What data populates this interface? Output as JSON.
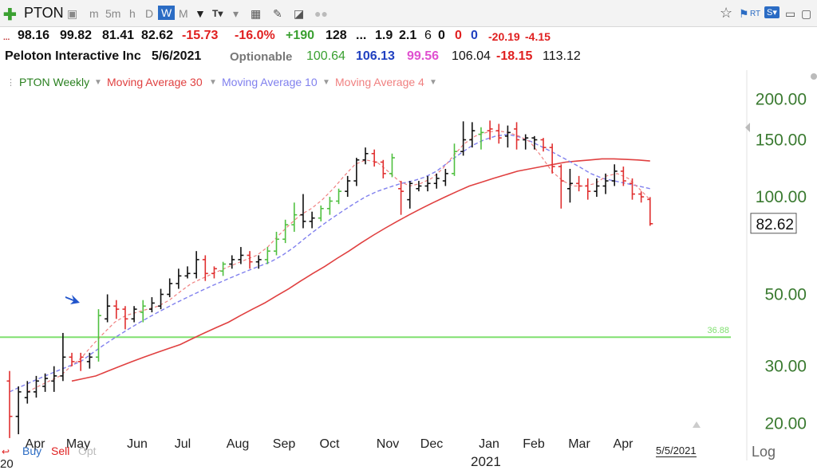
{
  "toolbar": {
    "symbol": "PTON",
    "periods": [
      "m",
      "5m",
      "h",
      "D",
      "W",
      "M"
    ],
    "active_period": "W",
    "icons": [
      "plus-icon",
      "printer-icon",
      "text-tool-icon",
      "grid-icon",
      "pencil-icon",
      "tag-icon",
      "dots-icon",
      "star-icon",
      "flag-icon",
      "rt-icon",
      "s-icon",
      "save-icon",
      "close-icon"
    ]
  },
  "quote_line1": {
    "open": "98.16",
    "high": "99.82",
    "low": "81.41",
    "close": "82.62",
    "change": "-15.73",
    "change_pct": "-16.0%",
    "rank": "+190",
    "val1": "128",
    "dots": "...",
    "val2": "1.9",
    "val3": "2.1",
    "c1": "6",
    "c2": "0",
    "c3": "0",
    "c4": "0",
    "val4": "-20.19",
    "val5": "-4.15"
  },
  "quote_line2": {
    "name": "Peloton Interactive Inc",
    "date": "5/6/2021",
    "optionable": "Optionable",
    "v1": "100.64",
    "v2": "106.13",
    "v3": "99.56",
    "v4": "106.04",
    "v5": "-18.15",
    "v6": "113.12"
  },
  "legend": {
    "series1": "PTON Weekly",
    "series2": "Moving Average 30",
    "series3": "Moving Average 10",
    "series4": "Moving Average 4"
  },
  "footer": {
    "buy": "Buy",
    "sell": "Sell",
    "opt": "Opt",
    "log": "Log",
    "date_box": "5/5/2021",
    "year_label": "2021",
    "year_prefix": "20"
  },
  "colors": {
    "up": "#50c040",
    "down": "#e03030",
    "neutral": "#111111",
    "ma30": "#e04040",
    "ma10": "#8080ee",
    "ma4": "#f08080",
    "hline": "#80e070",
    "axis_text": "#3a7a30"
  },
  "chart_data": {
    "type": "bar",
    "title": "",
    "scale": "log",
    "ylim": [
      17,
      230
    ],
    "y_ticks": [
      "200.00",
      "150.00",
      "100.00",
      "50.00",
      "30.00",
      "20.00"
    ],
    "y_tick_values": [
      200,
      150,
      100,
      50,
      30,
      20
    ],
    "x_ticks": [
      "Apr",
      "May",
      "Jun",
      "Jul",
      "Aug",
      "Sep",
      "Oct",
      "Nov",
      "Dec",
      "Jan",
      "Feb",
      "Mar",
      "Apr"
    ],
    "last_price_label": "82.62",
    "horizontal_line_label": "36.88",
    "horizontal_line_value": 36.88,
    "bars": [
      {
        "o": 27,
        "h": 29,
        "l": 18,
        "c": 21,
        "d": "down"
      },
      {
        "o": 21,
        "h": 26,
        "l": 18.5,
        "c": 25,
        "d": "neutral"
      },
      {
        "o": 24,
        "h": 27,
        "l": 23,
        "c": 25,
        "d": "neutral"
      },
      {
        "o": 25,
        "h": 28,
        "l": 24,
        "c": 27,
        "d": "neutral"
      },
      {
        "o": 26,
        "h": 28.5,
        "l": 25,
        "c": 27.5,
        "d": "neutral"
      },
      {
        "o": 27,
        "h": 30,
        "l": 25,
        "c": 28,
        "d": "neutral"
      },
      {
        "o": 28,
        "h": 38,
        "l": 27,
        "c": 32,
        "d": "neutral"
      },
      {
        "o": 32,
        "h": 33,
        "l": 30,
        "c": 31,
        "d": "down"
      },
      {
        "o": 31,
        "h": 33,
        "l": 29,
        "c": 32,
        "d": "down"
      },
      {
        "o": 31,
        "h": 33,
        "l": 29.5,
        "c": 32,
        "d": "neutral"
      },
      {
        "o": 32,
        "h": 45,
        "l": 31,
        "c": 43,
        "d": "up"
      },
      {
        "o": 42,
        "h": 50,
        "l": 41,
        "c": 46,
        "d": "neutral"
      },
      {
        "o": 46,
        "h": 48,
        "l": 42,
        "c": 45,
        "d": "down"
      },
      {
        "o": 45,
        "h": 46,
        "l": 39,
        "c": 42,
        "d": "down"
      },
      {
        "o": 42,
        "h": 46,
        "l": 41,
        "c": 45,
        "d": "neutral"
      },
      {
        "o": 44,
        "h": 48,
        "l": 41,
        "c": 46,
        "d": "up"
      },
      {
        "o": 45,
        "h": 49,
        "l": 44,
        "c": 47,
        "d": "neutral"
      },
      {
        "o": 46,
        "h": 52,
        "l": 45,
        "c": 50,
        "d": "neutral"
      },
      {
        "o": 50,
        "h": 56,
        "l": 49,
        "c": 54,
        "d": "neutral"
      },
      {
        "o": 54,
        "h": 60,
        "l": 52,
        "c": 57,
        "d": "neutral"
      },
      {
        "o": 57,
        "h": 61,
        "l": 56,
        "c": 58,
        "d": "neutral"
      },
      {
        "o": 58,
        "h": 68,
        "l": 56,
        "c": 64,
        "d": "neutral"
      },
      {
        "o": 64,
        "h": 66,
        "l": 55,
        "c": 58,
        "d": "down"
      },
      {
        "o": 58,
        "h": 61,
        "l": 56,
        "c": 60,
        "d": "down"
      },
      {
        "o": 59,
        "h": 63,
        "l": 57,
        "c": 62,
        "d": "up"
      },
      {
        "o": 62,
        "h": 66,
        "l": 60,
        "c": 64,
        "d": "neutral"
      },
      {
        "o": 64,
        "h": 70,
        "l": 62,
        "c": 66,
        "d": "neutral"
      },
      {
        "o": 66,
        "h": 68,
        "l": 60,
        "c": 63,
        "d": "down"
      },
      {
        "o": 63,
        "h": 66,
        "l": 60,
        "c": 64,
        "d": "neutral"
      },
      {
        "o": 64,
        "h": 70,
        "l": 62,
        "c": 68,
        "d": "up"
      },
      {
        "o": 68,
        "h": 78,
        "l": 66,
        "c": 74,
        "d": "up"
      },
      {
        "o": 74,
        "h": 85,
        "l": 72,
        "c": 82,
        "d": "up"
      },
      {
        "o": 82,
        "h": 96,
        "l": 78,
        "c": 88,
        "d": "up"
      },
      {
        "o": 88,
        "h": 102,
        "l": 80,
        "c": 84,
        "d": "neutral"
      },
      {
        "o": 84,
        "h": 90,
        "l": 80,
        "c": 86,
        "d": "neutral"
      },
      {
        "o": 86,
        "h": 94,
        "l": 84,
        "c": 92,
        "d": "up"
      },
      {
        "o": 92,
        "h": 100,
        "l": 88,
        "c": 97,
        "d": "up"
      },
      {
        "o": 97,
        "h": 106,
        "l": 95,
        "c": 104,
        "d": "up"
      },
      {
        "o": 104,
        "h": 116,
        "l": 100,
        "c": 112,
        "d": "neutral"
      },
      {
        "o": 112,
        "h": 132,
        "l": 108,
        "c": 130,
        "d": "neutral"
      },
      {
        "o": 130,
        "h": 142,
        "l": 126,
        "c": 136,
        "d": "neutral"
      },
      {
        "o": 136,
        "h": 140,
        "l": 124,
        "c": 128,
        "d": "down"
      },
      {
        "o": 128,
        "h": 130,
        "l": 114,
        "c": 118,
        "d": "down"
      },
      {
        "o": 118,
        "h": 136,
        "l": 115,
        "c": 132,
        "d": "up"
      },
      {
        "o": 106,
        "h": 112,
        "l": 88,
        "c": 104,
        "d": "down"
      },
      {
        "o": 98,
        "h": 112,
        "l": 92,
        "c": 110,
        "d": "neutral"
      },
      {
        "o": 106,
        "h": 112,
        "l": 104,
        "c": 108,
        "d": "neutral"
      },
      {
        "o": 108,
        "h": 116,
        "l": 104,
        "c": 110,
        "d": "neutral"
      },
      {
        "o": 110,
        "h": 118,
        "l": 106,
        "c": 114,
        "d": "neutral"
      },
      {
        "o": 112,
        "h": 122,
        "l": 108,
        "c": 118,
        "d": "neutral"
      },
      {
        "o": 118,
        "h": 146,
        "l": 116,
        "c": 138,
        "d": "up"
      },
      {
        "o": 138,
        "h": 171,
        "l": 134,
        "c": 150,
        "d": "neutral"
      },
      {
        "o": 150,
        "h": 170,
        "l": 142,
        "c": 160,
        "d": "neutral"
      },
      {
        "o": 156,
        "h": 164,
        "l": 140,
        "c": 158,
        "d": "up"
      },
      {
        "o": 160,
        "h": 172,
        "l": 150,
        "c": 162,
        "d": "down"
      },
      {
        "o": 160,
        "h": 168,
        "l": 146,
        "c": 152,
        "d": "down"
      },
      {
        "o": 154,
        "h": 166,
        "l": 142,
        "c": 158,
        "d": "neutral"
      },
      {
        "o": 162,
        "h": 170,
        "l": 140,
        "c": 150,
        "d": "down"
      },
      {
        "o": 150,
        "h": 156,
        "l": 140,
        "c": 152,
        "d": "neutral"
      },
      {
        "o": 152,
        "h": 154,
        "l": 140,
        "c": 150,
        "d": "neutral"
      },
      {
        "o": 150,
        "h": 152,
        "l": 138,
        "c": 142,
        "d": "down"
      },
      {
        "o": 142,
        "h": 146,
        "l": 118,
        "c": 124,
        "d": "down"
      },
      {
        "o": 124,
        "h": 126,
        "l": 92,
        "c": 112,
        "d": "down"
      },
      {
        "o": 106,
        "h": 122,
        "l": 96,
        "c": 110,
        "d": "neutral"
      },
      {
        "o": 110,
        "h": 116,
        "l": 104,
        "c": 108,
        "d": "down"
      },
      {
        "o": 108,
        "h": 114,
        "l": 98,
        "c": 104,
        "d": "down"
      },
      {
        "o": 104,
        "h": 114,
        "l": 100,
        "c": 108,
        "d": "neutral"
      },
      {
        "o": 108,
        "h": 118,
        "l": 102,
        "c": 112,
        "d": "neutral"
      },
      {
        "o": 112,
        "h": 126,
        "l": 108,
        "c": 120,
        "d": "neutral"
      },
      {
        "o": 120,
        "h": 124,
        "l": 108,
        "c": 112,
        "d": "down"
      },
      {
        "o": 110,
        "h": 114,
        "l": 98,
        "c": 102,
        "d": "down"
      },
      {
        "o": 102,
        "h": 104,
        "l": 96,
        "c": 100,
        "d": "down"
      },
      {
        "o": 98.16,
        "h": 99.82,
        "l": 81.41,
        "c": 82.62,
        "d": "down"
      }
    ],
    "ma30": [
      27,
      27.5,
      28,
      29,
      30,
      31,
      32,
      33,
      34,
      35,
      36.5,
      38,
      39.5,
      41,
      43,
      45,
      47,
      49.5,
      52,
      55,
      58,
      61,
      64.5,
      68,
      72,
      76,
      80,
      84,
      88,
      92,
      96,
      100,
      104,
      108,
      111,
      114,
      117,
      120,
      122,
      124,
      126,
      128,
      129,
      130,
      131,
      131,
      130.5,
      130,
      129
    ],
    "ma10": [
      25,
      26,
      27,
      28,
      29,
      30,
      31,
      33,
      35,
      37,
      39,
      41,
      43,
      45,
      47,
      49,
      51,
      53,
      55,
      57,
      59,
      61,
      63,
      66,
      70,
      75,
      80,
      85,
      90,
      95,
      100,
      104,
      107,
      110,
      112,
      115,
      120,
      128,
      136,
      144,
      150,
      154,
      156,
      153,
      148,
      142,
      136,
      130,
      124,
      118,
      114,
      112,
      110,
      108,
      106
    ],
    "ma4": [
      25,
      26,
      27,
      28,
      30,
      32,
      35,
      38,
      41,
      43,
      44,
      45,
      46,
      48,
      51,
      54,
      56,
      58,
      60,
      62,
      64,
      66,
      70,
      76,
      82,
      88,
      92,
      98,
      106,
      116,
      126,
      130,
      128,
      120,
      112,
      108,
      110,
      114,
      122,
      134,
      146,
      154,
      158,
      160,
      158,
      154,
      148,
      134,
      120,
      112,
      108,
      108,
      110,
      116,
      118,
      114,
      106,
      98
    ]
  }
}
